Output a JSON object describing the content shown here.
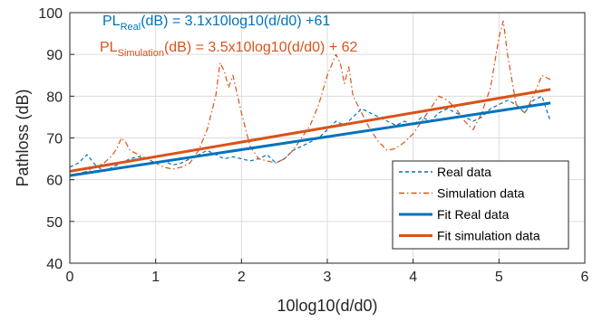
{
  "chart_data": {
    "type": "line",
    "title": "",
    "xlabel": "10log10(d/d0)",
    "ylabel": "Pathloss (dB)",
    "xlim": [
      0,
      6
    ],
    "ylim": [
      40,
      100
    ],
    "xticks": [
      "0",
      "1",
      "2",
      "3",
      "4",
      "5",
      "6"
    ],
    "yticks": [
      "40",
      "50",
      "60",
      "70",
      "80",
      "90",
      "100"
    ],
    "grid": true,
    "legend_position": "bottom-right",
    "annotations": [
      {
        "id": "real",
        "prefix": "PL",
        "subscript": "Real",
        "suffix": "(dB) = 3.1x10log10(d/d0) +61",
        "color": "#0072BD"
      },
      {
        "id": "sim",
        "prefix": "PL",
        "subscript": "Simulation",
        "suffix": "(dB) = 3.5x10log10(d/d0) + 62",
        "color": "#D95319"
      }
    ],
    "series": [
      {
        "name": "Real data",
        "style": "dashed",
        "color": "#0072BD",
        "x": [
          0,
          0.1,
          0.2,
          0.3,
          0.4,
          0.5,
          0.6,
          0.7,
          0.8,
          0.9,
          1.0,
          1.1,
          1.2,
          1.3,
          1.4,
          1.5,
          1.6,
          1.7,
          1.8,
          1.9,
          2.0,
          2.1,
          2.2,
          2.3,
          2.4,
          2.5,
          2.6,
          2.7,
          2.8,
          2.9,
          3.0,
          3.1,
          3.2,
          3.3,
          3.4,
          3.5,
          3.6,
          3.7,
          3.8,
          3.9,
          4.0,
          4.1,
          4.2,
          4.3,
          4.4,
          4.5,
          4.6,
          4.7,
          4.8,
          4.9,
          5.0,
          5.1,
          5.2,
          5.3,
          5.4,
          5.5,
          5.6
        ],
        "y": [
          63,
          64,
          66,
          63.5,
          62,
          63,
          64,
          65,
          65.5,
          65,
          64,
          64.5,
          63.5,
          64,
          65,
          66,
          67,
          66,
          65,
          65.5,
          65,
          64.5,
          65,
          66,
          64,
          65,
          67,
          68,
          69,
          70,
          72,
          74,
          73,
          75,
          77,
          76,
          75,
          74,
          73,
          74,
          73,
          75,
          74,
          76,
          77,
          76,
          75,
          74,
          75,
          77,
          78,
          79,
          78,
          76,
          79,
          80,
          74
        ]
      },
      {
        "name": "Simulation data",
        "style": "dashdot",
        "color": "#D95319",
        "x": [
          0,
          0.1,
          0.2,
          0.3,
          0.4,
          0.5,
          0.55,
          0.6,
          0.65,
          0.7,
          0.8,
          0.9,
          1.0,
          1.1,
          1.2,
          1.3,
          1.4,
          1.5,
          1.6,
          1.7,
          1.75,
          1.8,
          1.85,
          1.9,
          2.0,
          2.1,
          2.2,
          2.3,
          2.4,
          2.5,
          2.6,
          2.7,
          2.8,
          2.9,
          3.0,
          3.1,
          3.15,
          3.2,
          3.25,
          3.3,
          3.4,
          3.5,
          3.6,
          3.7,
          3.8,
          3.9,
          4.0,
          4.1,
          4.2,
          4.3,
          4.4,
          4.5,
          4.6,
          4.7,
          4.8,
          4.9,
          5.0,
          5.05,
          5.1,
          5.2,
          5.3,
          5.4,
          5.5,
          5.6
        ],
        "y": [
          61,
          61.5,
          62,
          63,
          64,
          66,
          67.5,
          70,
          69,
          67,
          66,
          65,
          64,
          63,
          62.5,
          63,
          64,
          67,
          72,
          80,
          88,
          86,
          82,
          85,
          76,
          68,
          65,
          64.5,
          64,
          65,
          67,
          70,
          73,
          78,
          85,
          90,
          88,
          83,
          87,
          80,
          76,
          72,
          69,
          67,
          67.5,
          69,
          71,
          74,
          77,
          80,
          79,
          77,
          74,
          72,
          76,
          82,
          94,
          98,
          90,
          78,
          76,
          80,
          85,
          84
        ]
      },
      {
        "name": "Fit Real data",
        "style": "solid",
        "color": "#0072BD",
        "x": [
          0,
          5.6
        ],
        "y": [
          61,
          78.36
        ]
      },
      {
        "name": "Fit simulation data",
        "style": "solid",
        "color": "#D95319",
        "x": [
          0,
          5.6
        ],
        "y": [
          62,
          81.6
        ]
      }
    ]
  }
}
